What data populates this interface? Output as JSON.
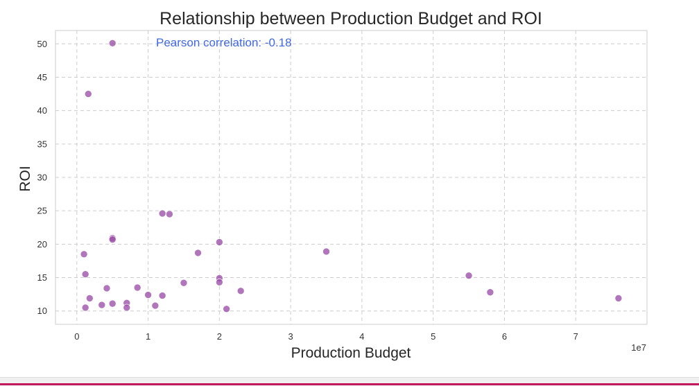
{
  "chart_data": {
    "type": "scatter",
    "title": "Relationship between Production Budget and ROI",
    "xlabel": "Production Budget",
    "ylabel": "ROI",
    "x_offset_label": "1e7",
    "annotation": "Pearson correlation: -0.18",
    "xlim": [
      -3000000,
      80000000
    ],
    "ylim": [
      8,
      52
    ],
    "x_ticks": [
      0,
      10000000,
      20000000,
      30000000,
      40000000,
      50000000,
      60000000,
      70000000
    ],
    "x_tick_labels": [
      "0",
      "1",
      "2",
      "3",
      "4",
      "5",
      "6",
      "7"
    ],
    "y_ticks": [
      10,
      15,
      20,
      25,
      30,
      35,
      40,
      45,
      50
    ],
    "y_tick_labels": [
      "10",
      "15",
      "20",
      "25",
      "30",
      "35",
      "40",
      "45",
      "50"
    ],
    "grid": true,
    "marker_color": "#9b4ea8",
    "annotation_color": "#4169e1",
    "points": [
      {
        "x": 5000000,
        "y": 50.1
      },
      {
        "x": 1600000,
        "y": 42.5
      },
      {
        "x": 12000000,
        "y": 24.6
      },
      {
        "x": 13000000,
        "y": 24.5
      },
      {
        "x": 5000000,
        "y": 20.9
      },
      {
        "x": 5000000,
        "y": 20.7
      },
      {
        "x": 20000000,
        "y": 20.3
      },
      {
        "x": 35000000,
        "y": 18.9
      },
      {
        "x": 1000000,
        "y": 18.5
      },
      {
        "x": 17000000,
        "y": 18.7
      },
      {
        "x": 1200000,
        "y": 15.5
      },
      {
        "x": 55000000,
        "y": 15.3
      },
      {
        "x": 20000000,
        "y": 14.9
      },
      {
        "x": 20000000,
        "y": 14.3
      },
      {
        "x": 15000000,
        "y": 14.2
      },
      {
        "x": 4200000,
        "y": 13.4
      },
      {
        "x": 8500000,
        "y": 13.5
      },
      {
        "x": 23000000,
        "y": 13.0
      },
      {
        "x": 58000000,
        "y": 12.8
      },
      {
        "x": 10000000,
        "y": 12.4
      },
      {
        "x": 12000000,
        "y": 12.3
      },
      {
        "x": 1800000,
        "y": 11.9
      },
      {
        "x": 76000000,
        "y": 11.9
      },
      {
        "x": 7000000,
        "y": 11.2
      },
      {
        "x": 5000000,
        "y": 11.1
      },
      {
        "x": 3500000,
        "y": 10.9
      },
      {
        "x": 11000000,
        "y": 10.8
      },
      {
        "x": 1200000,
        "y": 10.5
      },
      {
        "x": 7000000,
        "y": 10.5
      },
      {
        "x": 21000000,
        "y": 10.3
      }
    ]
  }
}
